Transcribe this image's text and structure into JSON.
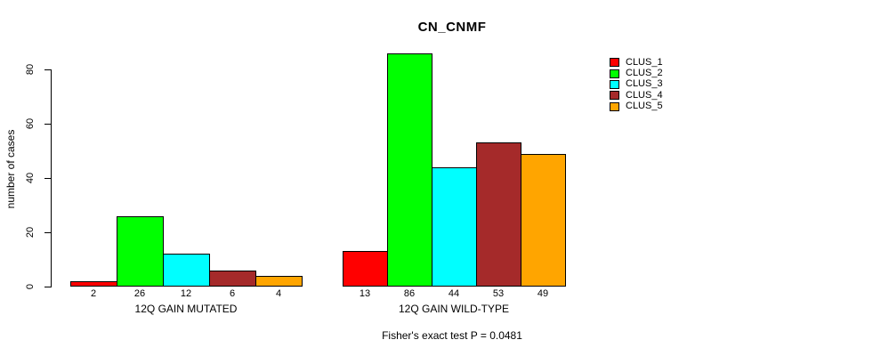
{
  "chart_data": {
    "type": "bar",
    "title": "CN_CNMF",
    "xlabel": "",
    "ylabel": "number of cases",
    "categories": [
      "12Q GAIN MUTATED",
      "12Q GAIN WILD-TYPE"
    ],
    "series": [
      {
        "name": "CLUS_1",
        "color": "#ff0000",
        "values": [
          2,
          13
        ]
      },
      {
        "name": "CLUS_2",
        "color": "#00ff00",
        "values": [
          26,
          86
        ]
      },
      {
        "name": "CLUS_3",
        "color": "#00ffff",
        "values": [
          12,
          44
        ]
      },
      {
        "name": "CLUS_4",
        "color": "#a52a2a",
        "values": [
          6,
          53
        ]
      },
      {
        "name": "CLUS_5",
        "color": "#ffa500",
        "values": [
          4,
          49
        ]
      }
    ],
    "yticks": [
      0,
      20,
      40,
      60,
      80
    ],
    "ylim": [
      0,
      86
    ],
    "grid": false,
    "legend_position": "right-outside",
    "bar_value_labels": true,
    "annotation": "Fisher's exact test P = 0.0481",
    "background_color": "#ffffff",
    "axis_color": "#000000"
  }
}
